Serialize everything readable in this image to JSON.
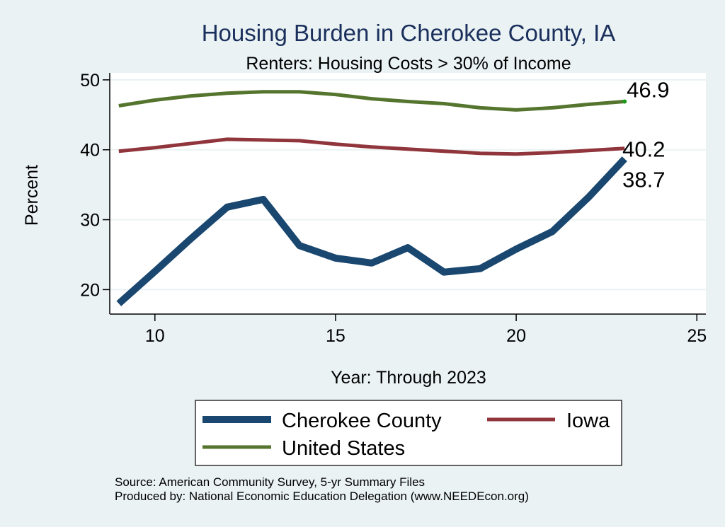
{
  "chart_data": {
    "type": "line",
    "title": "Housing Burden in Cherokee County, IA",
    "subtitle": "Renters: Housing Costs > 30% of Income",
    "xlabel": "Year: Through 2023",
    "ylabel": "Percent",
    "xlim": [
      8.75,
      25.25
    ],
    "ylim": [
      16.5,
      51.0
    ],
    "xticks": [
      10,
      15,
      20,
      25
    ],
    "yticks": [
      20,
      30,
      40,
      50
    ],
    "grid": true,
    "legend_position": "bottom",
    "x": [
      9,
      10,
      11,
      12,
      13,
      14,
      15,
      16,
      17,
      18,
      19,
      20,
      21,
      22,
      23
    ],
    "series": [
      {
        "name": "Cherokee County",
        "color": "#1a476f",
        "values": [
          18.0,
          22.6,
          27.3,
          31.8,
          32.9,
          26.3,
          24.5,
          23.8,
          26.0,
          22.5,
          23.0,
          25.8,
          28.3,
          33.2,
          38.7
        ],
        "end_label": "38.7"
      },
      {
        "name": "Iowa",
        "color": "#90353b",
        "values": [
          39.8,
          40.3,
          40.9,
          41.5,
          41.4,
          41.3,
          40.8,
          40.4,
          40.1,
          39.8,
          39.5,
          39.4,
          39.6,
          39.9,
          40.2
        ],
        "end_label": "40.2"
      },
      {
        "name": "United States",
        "color": "#55752f",
        "values": [
          46.3,
          47.1,
          47.7,
          48.1,
          48.3,
          48.3,
          47.9,
          47.3,
          46.9,
          46.6,
          46.0,
          45.7,
          46.0,
          46.5,
          46.9
        ],
        "end_label": "46.9"
      }
    ],
    "source_lines": [
      "Source: American Community Survey, 5-yr Summary Files",
      "Produced by: National Economic Education Delegation (www.NEEDEcon.org)"
    ]
  }
}
